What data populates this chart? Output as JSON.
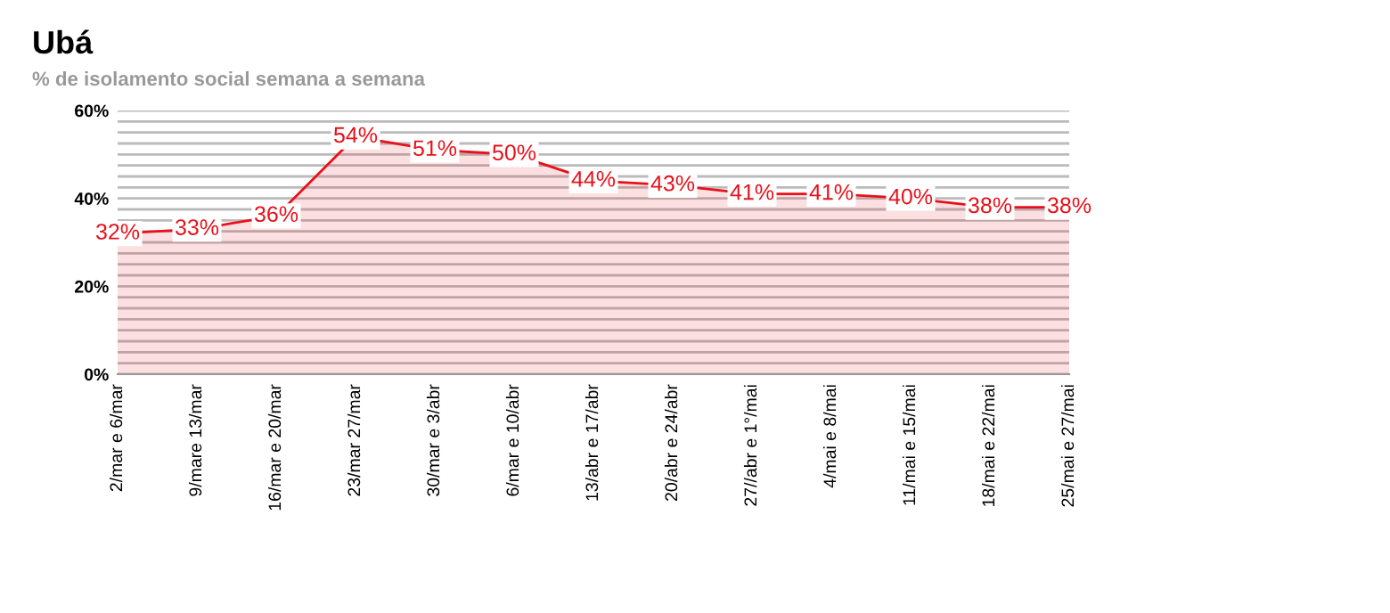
{
  "chart_data": {
    "type": "area",
    "title": "Ubá",
    "subtitle": "% de isolamento social semana a semana",
    "categories": [
      "2/mar e 6/mar",
      "9/mare 13/mar",
      "16/mar e 20/mar",
      "23/mar 27/mar",
      "30/mar e 3/abr",
      "6/mar e 10/abr",
      "13/abr e 17/abr",
      "20/abr e 24/abr",
      "27//abr e 1°/mai",
      "4/mai e 8/mai",
      "11/mai e 15/mai",
      "18/mai e 22/mai",
      "25/mai e 27/mai"
    ],
    "series": [
      {
        "color": "#e8101a",
        "values": [
          32,
          33,
          36,
          54,
          51,
          50,
          44,
          43,
          41,
          41,
          40,
          38,
          38
        ],
        "value_labels": [
          "32%",
          "33%",
          "36%",
          "54%",
          "51%",
          "50%",
          "44%",
          "43%",
          "41%",
          "41%",
          "40%",
          "38%",
          "38%"
        ]
      }
    ],
    "ylim": [
      0,
      60
    ],
    "yticks": [
      {
        "value": 0,
        "label": "0%"
      },
      {
        "value": 2.5,
        "label": null
      },
      {
        "value": 5,
        "label": null
      },
      {
        "value": 7.5,
        "label": null
      },
      {
        "value": 10,
        "label": null
      },
      {
        "value": 12.5,
        "label": null
      },
      {
        "value": 15,
        "label": null
      },
      {
        "value": 17.5,
        "label": null
      },
      {
        "value": 20,
        "label": "20%"
      },
      {
        "value": 22.5,
        "label": null
      },
      {
        "value": 25,
        "label": null
      },
      {
        "value": 27.5,
        "label": null
      },
      {
        "value": 30,
        "label": null
      },
      {
        "value": 32.5,
        "label": null
      },
      {
        "value": 35,
        "label": null
      },
      {
        "value": 37.5,
        "label": null
      },
      {
        "value": 40,
        "label": "40%"
      },
      {
        "value": 42.5,
        "label": null
      },
      {
        "value": 45,
        "label": null
      },
      {
        "value": 47.5,
        "label": null
      },
      {
        "value": 50,
        "label": null
      },
      {
        "value": 52.5,
        "label": null
      },
      {
        "value": 55,
        "label": null
      },
      {
        "value": 57.5,
        "label": null
      },
      {
        "value": 60,
        "label": "60%"
      }
    ],
    "grid": "y",
    "legend": false,
    "line_style": "solid"
  }
}
